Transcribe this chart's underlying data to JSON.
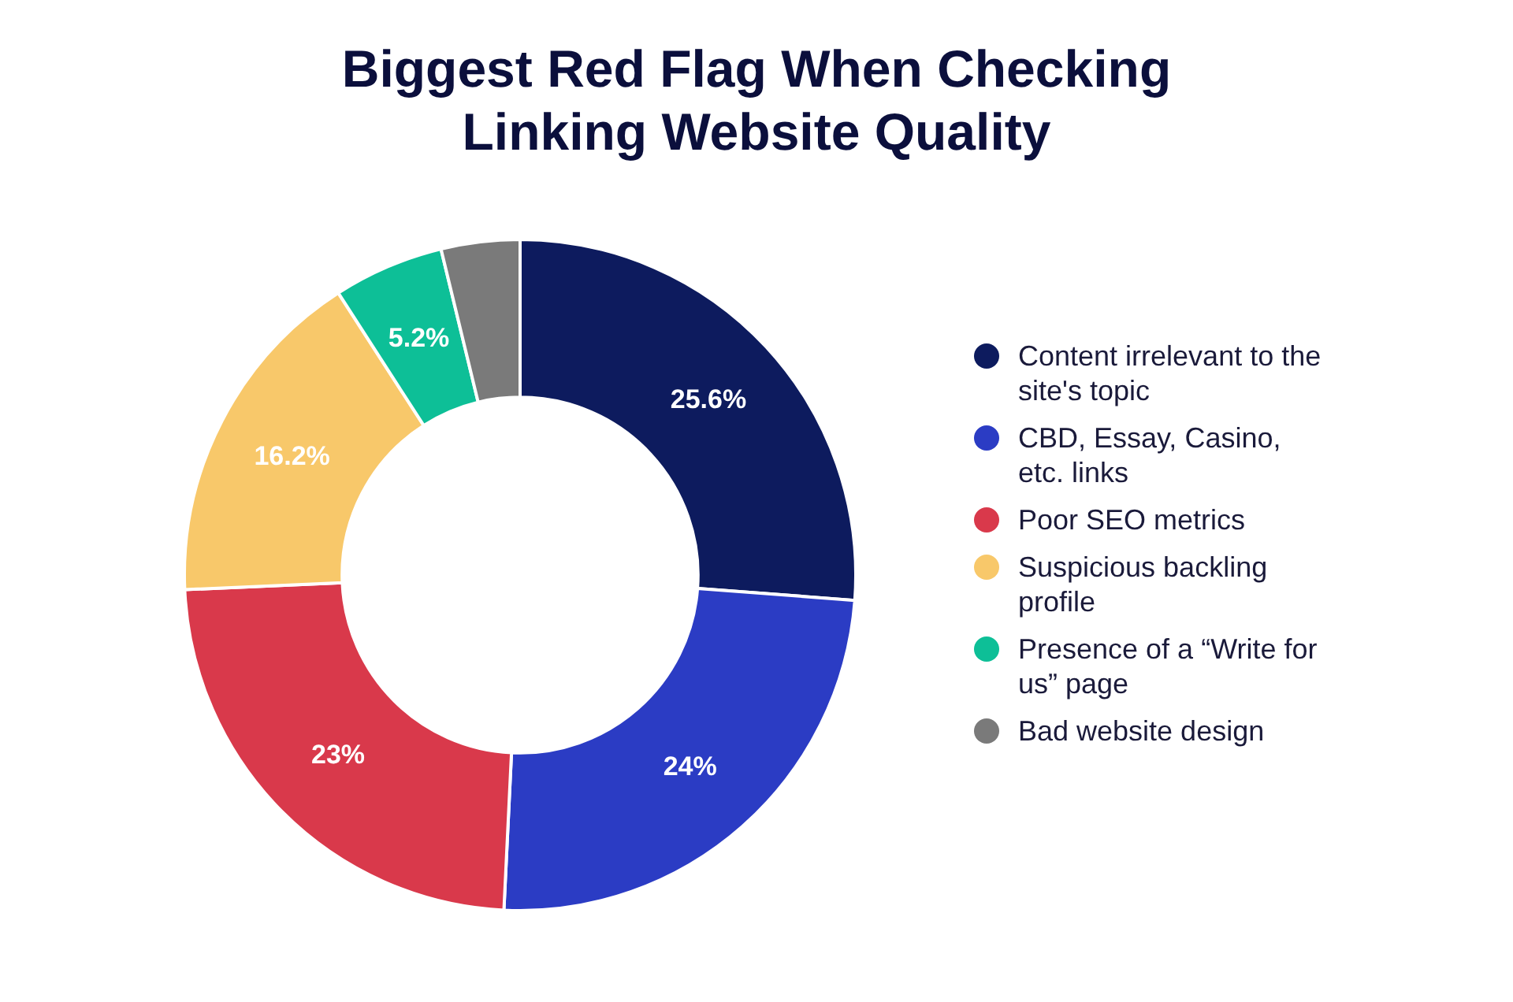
{
  "chart_data": {
    "type": "donut",
    "title": "Biggest Red Flag When Checking Linking Website Quality",
    "categories": [
      "Content irrelevant to the site's topic",
      "CBD, Essay, Casino, etc. links",
      "Poor SEO metrics",
      "Suspicious backling profile",
      "Presence of a “Write for us” page",
      "Bad website design"
    ],
    "values": [
      25.6,
      24,
      23,
      16.2,
      5.2,
      3.7
    ],
    "value_labels": [
      "25.6%",
      "24%",
      "23%",
      "16.2%",
      "5.2%",
      null
    ],
    "colors": [
      "#0d1b5e",
      "#2b3cc4",
      "#d9394b",
      "#f8c86a",
      "#0dbf97",
      "#7a7a7a"
    ],
    "legend": "right"
  }
}
